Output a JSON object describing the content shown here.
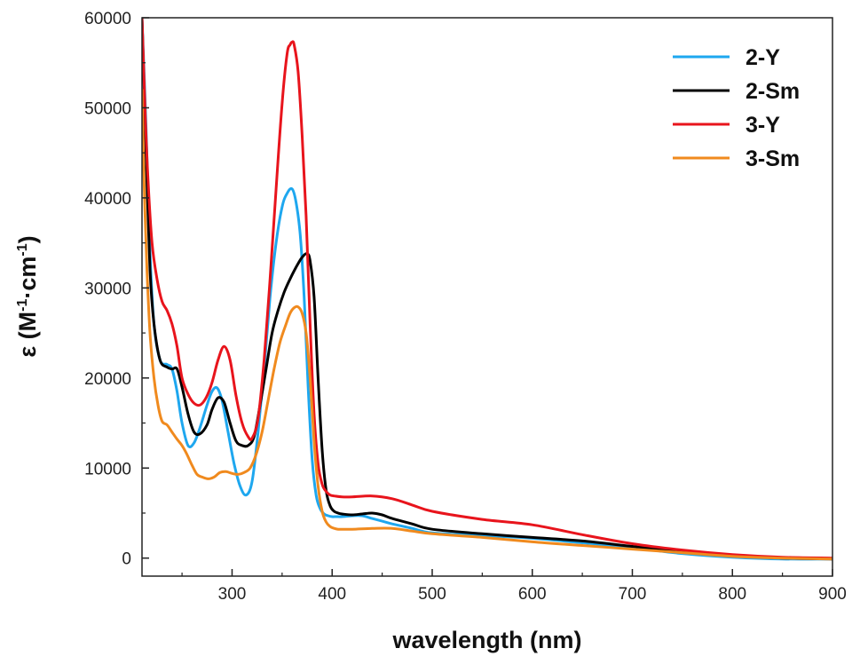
{
  "chart_data": {
    "type": "line",
    "xlabel": "wavelength (nm)",
    "ylabel": {
      "prefix": "ε (M",
      "exp1": "-1",
      "mid": "·cm",
      "exp2": "-1",
      "suffix": ")"
    },
    "xlim": [
      210,
      900
    ],
    "ylim": [
      -2000,
      60000
    ],
    "xticks": [
      300,
      400,
      500,
      600,
      700,
      800,
      900
    ],
    "yticks": [
      0,
      10000,
      20000,
      30000,
      40000,
      50000,
      60000
    ],
    "grid": false,
    "legend_position": "top-right",
    "series": [
      {
        "name": "2-Y",
        "color": "#1ea7ef",
        "x": [
          210,
          214,
          218,
          222,
          228,
          235,
          240,
          245,
          250,
          256,
          262,
          268,
          275,
          280,
          285,
          290,
          296,
          302,
          308,
          314,
          320,
          326,
          332,
          338,
          344,
          350,
          355,
          360,
          364,
          368,
          372,
          376,
          380,
          384,
          388,
          392,
          396,
          400,
          404,
          410,
          420,
          430,
          440,
          450,
          460,
          480,
          500,
          550,
          600,
          650,
          700,
          720,
          750,
          800,
          850,
          900
        ],
        "y": [
          60000,
          48000,
          34000,
          26000,
          22000,
          21500,
          21000,
          18500,
          15000,
          12500,
          12800,
          14500,
          17000,
          18500,
          18900,
          17500,
          14000,
          10500,
          8000,
          7000,
          8500,
          14000,
          21000,
          29000,
          35000,
          39000,
          40500,
          41000,
          39500,
          36000,
          29000,
          19000,
          11000,
          7000,
          5500,
          4900,
          4700,
          4600,
          4600,
          4600,
          4700,
          4700,
          4400,
          4100,
          3800,
          3300,
          2800,
          2500,
          2200,
          1700,
          1200,
          900,
          500,
          100,
          -100,
          -100
        ]
      },
      {
        "name": "2-Sm",
        "color": "#000000",
        "x": [
          210,
          214,
          218,
          222,
          228,
          235,
          240,
          245,
          250,
          256,
          262,
          268,
          275,
          280,
          286,
          292,
          298,
          304,
          310,
          316,
          322,
          328,
          334,
          340,
          346,
          352,
          358,
          364,
          370,
          375,
          378,
          382,
          386,
          390,
          394,
          398,
          402,
          406,
          410,
          420,
          430,
          440,
          450,
          460,
          480,
          500,
          550,
          600,
          650,
          700,
          750,
          800,
          850,
          900
        ],
        "y": [
          60000,
          45000,
          32000,
          26000,
          22000,
          21200,
          21000,
          21000,
          19000,
          16000,
          14000,
          13800,
          14800,
          16500,
          17800,
          17300,
          15000,
          13000,
          12500,
          12500,
          13500,
          17000,
          21000,
          25000,
          27500,
          29500,
          31000,
          32300,
          33400,
          33800,
          33000,
          29000,
          20000,
          12000,
          7500,
          5800,
          5200,
          5000,
          4900,
          4800,
          4900,
          5000,
          4800,
          4400,
          3800,
          3200,
          2700,
          2300,
          1900,
          1300,
          700,
          300,
          0,
          -100
        ]
      },
      {
        "name": "3-Y",
        "color": "#e8141c",
        "x": [
          210,
          213,
          216,
          220,
          225,
          230,
          235,
          240,
          245,
          250,
          256,
          262,
          268,
          274,
          280,
          286,
          292,
          298,
          304,
          310,
          316,
          320,
          326,
          332,
          338,
          344,
          350,
          355,
          358,
          360,
          362,
          366,
          370,
          374,
          378,
          382,
          386,
          390,
          394,
          398,
          402,
          410,
          420,
          440,
          460,
          480,
          500,
          550,
          600,
          650,
          700,
          750,
          800,
          850,
          900
        ],
        "y": [
          60000,
          50000,
          42000,
          35000,
          31000,
          28500,
          27500,
          26000,
          23500,
          20000,
          18200,
          17200,
          17000,
          17800,
          19500,
          22000,
          23500,
          22000,
          18000,
          15000,
          13500,
          13300,
          15500,
          22000,
          31000,
          41000,
          50500,
          56000,
          57000,
          57300,
          57000,
          54000,
          47000,
          38000,
          26000,
          16000,
          10500,
          8200,
          7400,
          7000,
          6900,
          6800,
          6800,
          6900,
          6600,
          5900,
          5200,
          4300,
          3700,
          2600,
          1600,
          900,
          400,
          100,
          0
        ]
      },
      {
        "name": "3-Sm",
        "color": "#f08a1e",
        "x": [
          210,
          212,
          215,
          218,
          222,
          226,
          230,
          235,
          240,
          245,
          250,
          255,
          260,
          265,
          270,
          276,
          282,
          288,
          294,
          300,
          306,
          312,
          318,
          324,
          330,
          336,
          342,
          348,
          354,
          358,
          362,
          366,
          370,
          374,
          378,
          382,
          386,
          390,
          394,
          398,
          402,
          406,
          410,
          420,
          440,
          460,
          480,
          500,
          550,
          600,
          650,
          700,
          750,
          800,
          850,
          900
        ],
        "y": [
          52000,
          42000,
          32000,
          25000,
          20000,
          17000,
          15200,
          14800,
          14000,
          13200,
          12500,
          11500,
          10300,
          9300,
          9000,
          8800,
          9000,
          9500,
          9600,
          9400,
          9300,
          9500,
          10000,
          11500,
          14000,
          17500,
          21000,
          24000,
          26000,
          27200,
          27800,
          27900,
          27200,
          25000,
          20000,
          13000,
          8000,
          5200,
          4000,
          3500,
          3300,
          3200,
          3200,
          3200,
          3300,
          3300,
          3000,
          2700,
          2300,
          1800,
          1400,
          1000,
          600,
          200,
          0,
          -100
        ]
      }
    ]
  }
}
